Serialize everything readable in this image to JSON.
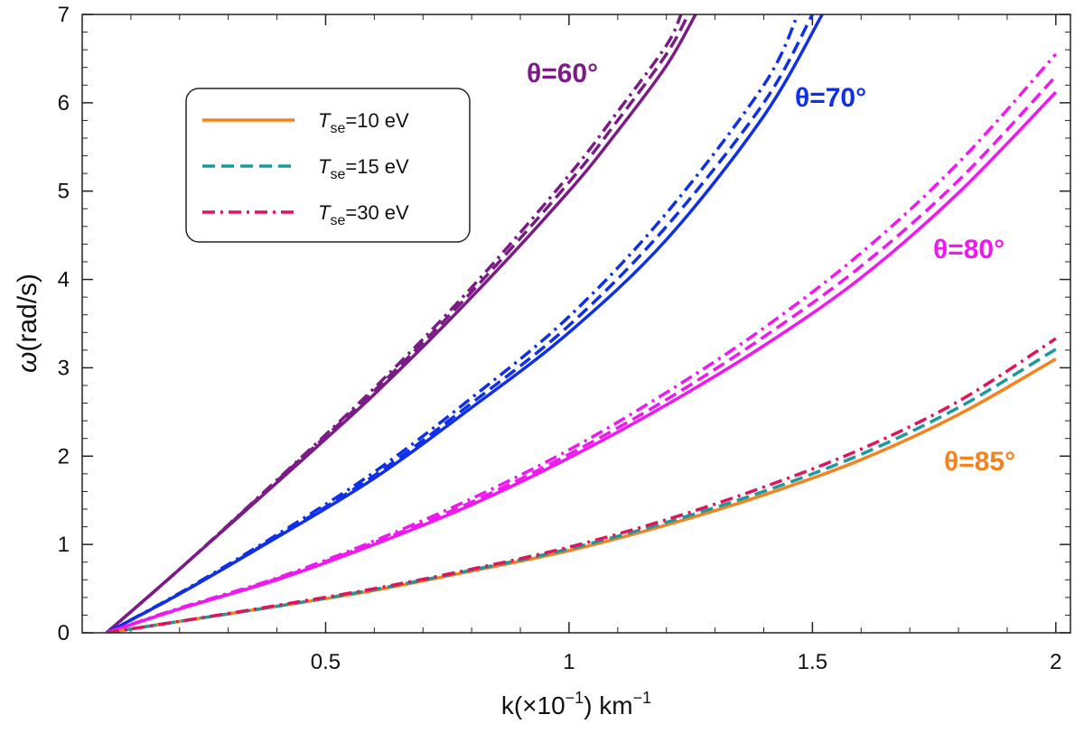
{
  "chart_data": {
    "type": "line",
    "xlabel_parts": [
      "k(×10",
      "−1",
      ") km",
      "−1"
    ],
    "ylabel_parts": [
      "ω",
      "(rad/s)"
    ],
    "xlim": [
      0.0,
      2.03
    ],
    "ylim": [
      0,
      7
    ],
    "x_ticks": [
      0.5,
      1,
      1.5,
      2
    ],
    "x_tick_labels": [
      "0.5",
      "1",
      "1.5",
      "2"
    ],
    "y_ticks": [
      0,
      1,
      2,
      3,
      4,
      5,
      6,
      7
    ],
    "y_tick_labels": [
      "0",
      "1",
      "2",
      "3",
      "4",
      "5",
      "6",
      "7"
    ],
    "legend": [
      {
        "symbol": "T",
        "sub": "se",
        "rest": "=10 eV",
        "style": "solid",
        "color": "#f5821f"
      },
      {
        "symbol": "T",
        "sub": "se",
        "rest": "=15 eV",
        "style": "dashed",
        "color": "#1a9a9a"
      },
      {
        "symbol": "T",
        "sub": "se",
        "rest": "=30 eV",
        "style": "dashdot",
        "color": "#e0145a"
      }
    ],
    "groups": [
      {
        "label": "θ=60°",
        "color": "#7b1c86",
        "series": [
          {
            "name": "T_se=10 eV",
            "style": "solid",
            "x": [
              0.05,
              0.2,
              0.4,
              0.6,
              0.8,
              1.0,
              1.1,
              1.2,
              1.26
            ],
            "y": [
              0.0,
              0.72,
              1.7,
              2.7,
              3.8,
              5.0,
              5.68,
              6.42,
              7.0
            ]
          },
          {
            "name": "T_se=15 eV",
            "style": "dashed",
            "x": [
              0.05,
              0.2,
              0.4,
              0.6,
              0.8,
              1.0,
              1.1,
              1.2,
              1.245
            ],
            "y": [
              0.0,
              0.72,
              1.72,
              2.74,
              3.86,
              5.1,
              5.8,
              6.55,
              7.0
            ]
          },
          {
            "name": "T_se=30 eV",
            "style": "dashdot",
            "x": [
              0.05,
              0.2,
              0.4,
              0.6,
              0.8,
              1.0,
              1.1,
              1.2,
              1.23
            ],
            "y": [
              0.0,
              0.72,
              1.73,
              2.77,
              3.91,
              5.18,
              5.9,
              6.65,
              7.0
            ]
          }
        ]
      },
      {
        "label": "θ=70°",
        "color": "#1030e8",
        "series": [
          {
            "name": "T_se=10 eV",
            "style": "solid",
            "x": [
              0.05,
              0.2,
              0.4,
              0.6,
              0.8,
              1.0,
              1.2,
              1.4,
              1.52
            ],
            "y": [
              0.0,
              0.44,
              1.08,
              1.75,
              2.55,
              3.4,
              4.45,
              5.85,
              7.0
            ]
          },
          {
            "name": "T_se=15 eV",
            "style": "dashed",
            "x": [
              0.05,
              0.2,
              0.4,
              0.6,
              0.8,
              1.0,
              1.2,
              1.4,
              1.5
            ],
            "y": [
              0.0,
              0.44,
              1.09,
              1.78,
              2.6,
              3.48,
              4.6,
              6.0,
              7.0
            ]
          },
          {
            "name": "T_se=30 eV",
            "style": "dashdot",
            "x": [
              0.05,
              0.2,
              0.4,
              0.6,
              0.8,
              1.0,
              1.2,
              1.4,
              1.47
            ],
            "y": [
              0.0,
              0.45,
              1.11,
              1.82,
              2.66,
              3.58,
              4.75,
              6.2,
              7.0
            ]
          }
        ]
      },
      {
        "label": "θ=80°",
        "color": "#f018f0",
        "series": [
          {
            "name": "T_se=10 eV",
            "style": "solid",
            "x": [
              0.05,
              0.2,
              0.4,
              0.6,
              0.8,
              1.0,
              1.2,
              1.4,
              1.6,
              1.8,
              2.0
            ],
            "y": [
              0.0,
              0.27,
              0.6,
              1.0,
              1.45,
              1.98,
              2.58,
              3.25,
              4.02,
              4.98,
              6.12
            ]
          },
          {
            "name": "T_se=15 eV",
            "style": "dashed",
            "x": [
              0.05,
              0.2,
              0.4,
              0.6,
              0.8,
              1.0,
              1.2,
              1.4,
              1.6,
              1.8,
              2.0
            ],
            "y": [
              0.0,
              0.27,
              0.61,
              1.02,
              1.48,
              2.02,
              2.64,
              3.35,
              4.15,
              5.12,
              6.3
            ]
          },
          {
            "name": "T_se=30 eV",
            "style": "dashdot",
            "x": [
              0.05,
              0.2,
              0.4,
              0.6,
              0.8,
              1.0,
              1.2,
              1.4,
              1.6,
              1.8,
              2.0
            ],
            "y": [
              0.0,
              0.28,
              0.62,
              1.04,
              1.52,
              2.07,
              2.72,
              3.45,
              4.3,
              5.32,
              6.55
            ]
          }
        ]
      },
      {
        "label": "θ=85°",
        "color": "#f5821f",
        "series": [
          {
            "name": "T_se=10 eV",
            "style": "solid",
            "color": "#f5821f",
            "x": [
              0.05,
              0.2,
              0.4,
              0.6,
              0.8,
              1.0,
              1.2,
              1.4,
              1.6,
              1.8,
              2.0
            ],
            "y": [
              0.0,
              0.13,
              0.3,
              0.48,
              0.7,
              0.93,
              1.22,
              1.56,
              1.96,
              2.47,
              3.1
            ]
          },
          {
            "name": "T_se=15 eV",
            "style": "dashed",
            "color": "#1a9a9a",
            "x": [
              0.05,
              0.2,
              0.4,
              0.6,
              0.8,
              1.0,
              1.2,
              1.4,
              1.6,
              1.8,
              2.0
            ],
            "y": [
              0.0,
              0.13,
              0.3,
              0.49,
              0.71,
              0.95,
              1.25,
              1.6,
              2.02,
              2.55,
              3.21
            ]
          },
          {
            "name": "T_se=30 eV",
            "style": "dashdot",
            "color": "#e0145a",
            "x": [
              0.05,
              0.2,
              0.4,
              0.6,
              0.8,
              1.0,
              1.2,
              1.4,
              1.6,
              1.8,
              2.0
            ],
            "y": [
              0.0,
              0.13,
              0.31,
              0.5,
              0.72,
              0.97,
              1.28,
              1.65,
              2.08,
              2.62,
              3.33
            ]
          }
        ]
      }
    ]
  }
}
